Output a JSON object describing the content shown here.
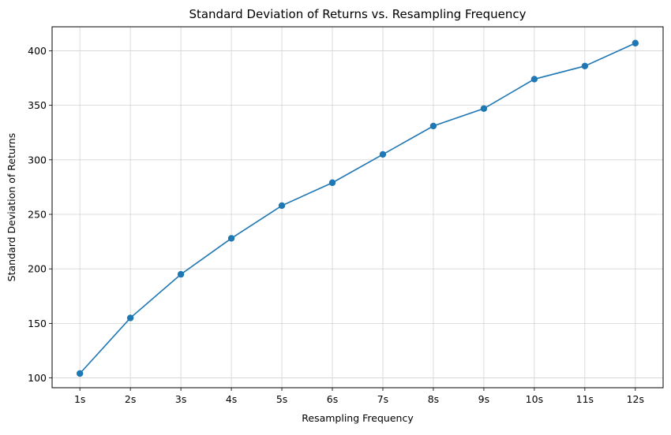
{
  "chart_data": {
    "type": "line",
    "title": "Standard Deviation of Returns vs. Resampling Frequency",
    "xlabel": "Resampling Frequency",
    "ylabel": "Standard Deviation of Returns",
    "categories": [
      "1s",
      "2s",
      "3s",
      "4s",
      "5s",
      "6s",
      "7s",
      "8s",
      "9s",
      "10s",
      "11s",
      "12s"
    ],
    "series": [
      {
        "values": [
          104,
          155,
          195,
          228,
          258,
          279,
          305,
          331,
          347,
          374,
          386,
          407
        ],
        "color": "#1f77b4",
        "marker": "circle"
      }
    ],
    "yticks": [
      100,
      150,
      200,
      250,
      300,
      350,
      400
    ],
    "ylim": [
      91,
      422
    ],
    "grid": true,
    "legend": "none"
  }
}
